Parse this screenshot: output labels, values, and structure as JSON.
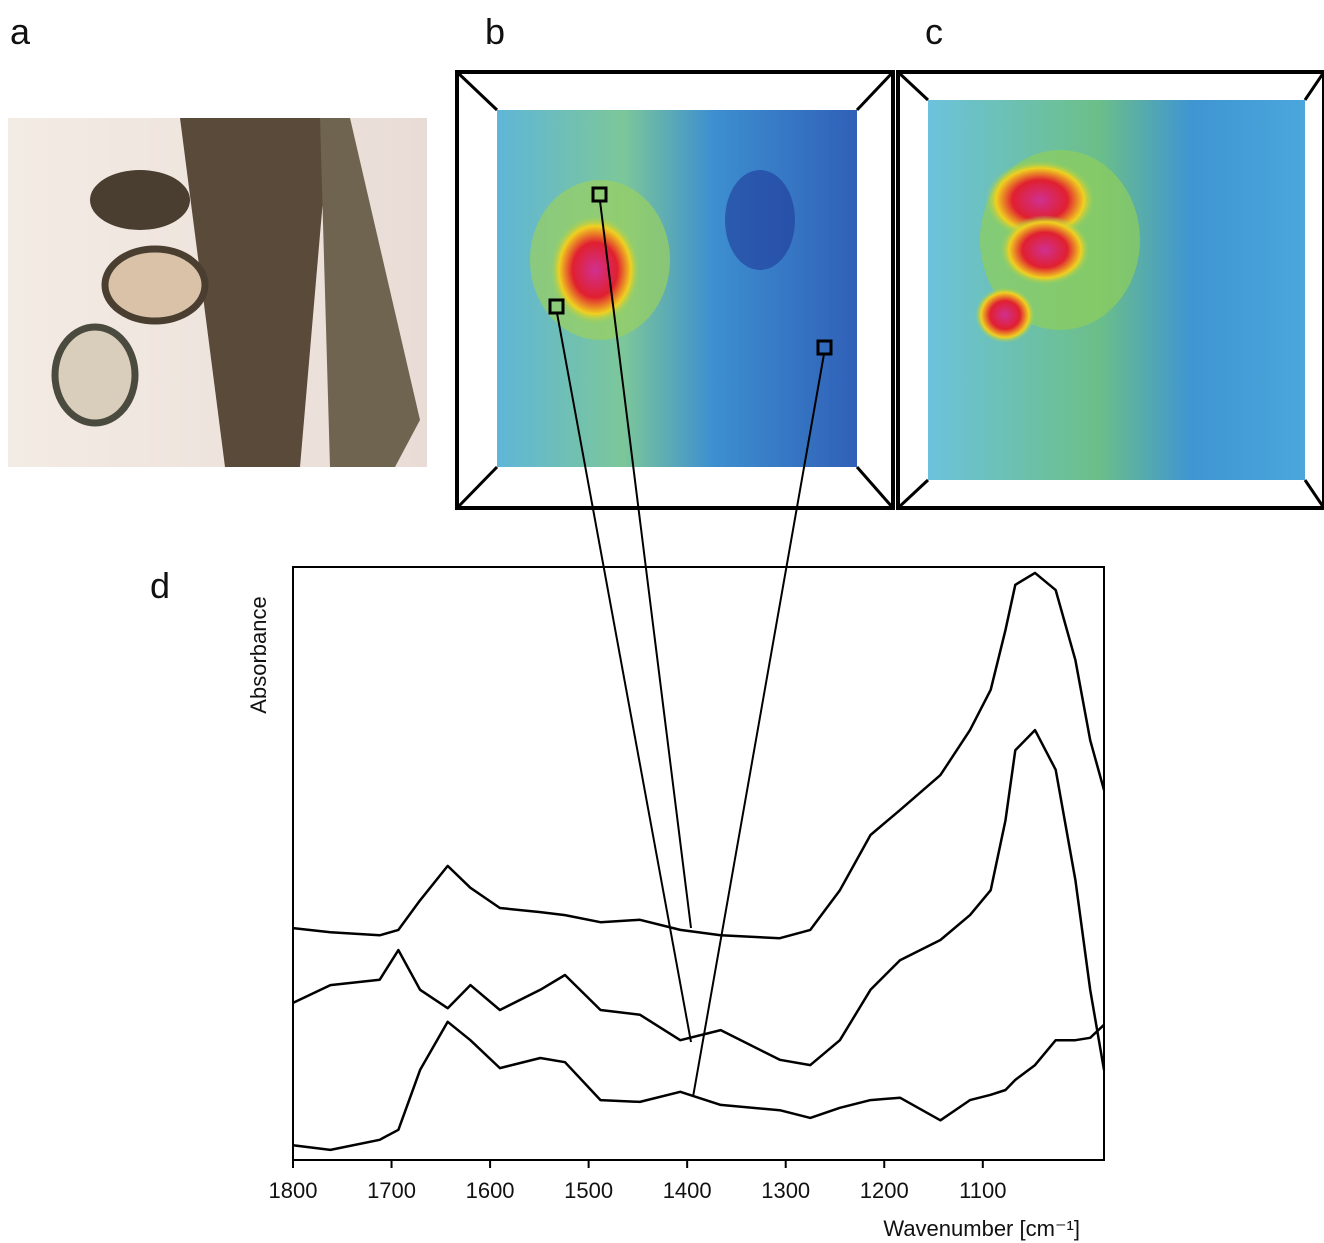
{
  "panel_labels": [
    "a",
    "b",
    "c",
    "d"
  ],
  "chart_data": {
    "type": "line",
    "x_label": "Wavenumber [cm⁻¹]",
    "y_label": "Absorbance",
    "x": [
      1800,
      1762,
      1712,
      1693,
      1671,
      1643,
      1620,
      1590,
      1549,
      1524,
      1488,
      1448,
      1407,
      1366,
      1306,
      1275,
      1245,
      1214,
      1184,
      1143,
      1113,
      1092,
      1077,
      1067,
      1047,
      1026,
      1006,
      991,
      977
    ],
    "series": [
      {
        "color": "#000000",
        "values": [
          39.1,
          38.4,
          37.9,
          38.8,
          43.8,
          49.6,
          45.9,
          42.5,
          41.8,
          41.3,
          40.1,
          40.5,
          38.8,
          37.9,
          37.4,
          38.8,
          45.5,
          54.8,
          59.0,
          64.9,
          72.5,
          79.3,
          89.4,
          97.0,
          99.0,
          96.1,
          84.3,
          70.8,
          62.4
        ]
      },
      {
        "color": "#000000",
        "values": [
          26.5,
          29.5,
          30.4,
          35.4,
          28.7,
          25.6,
          29.5,
          25.3,
          28.7,
          31.2,
          25.3,
          24.5,
          20.2,
          21.9,
          16.9,
          16.0,
          20.2,
          28.7,
          33.7,
          37.1,
          41.3,
          45.5,
          57.3,
          69.1,
          72.5,
          65.8,
          47.2,
          28.7,
          15.2
        ]
      },
      {
        "color": "#000000",
        "values": [
          2.5,
          1.7,
          3.4,
          5.1,
          15.2,
          23.3,
          20.2,
          15.5,
          17.2,
          16.5,
          10.1,
          9.8,
          11.5,
          9.3,
          8.4,
          7.1,
          8.8,
          10.1,
          10.5,
          6.7,
          10.1,
          11.0,
          11.8,
          13.5,
          16.0,
          20.2,
          20.2,
          20.6,
          22.8
        ]
      }
    ],
    "xlim": [
      1800,
      977
    ],
    "ylim": [
      0,
      100
    ],
    "xticks": [
      1800,
      1700,
      1600,
      1500,
      1400,
      1300,
      1200,
      1100
    ]
  }
}
